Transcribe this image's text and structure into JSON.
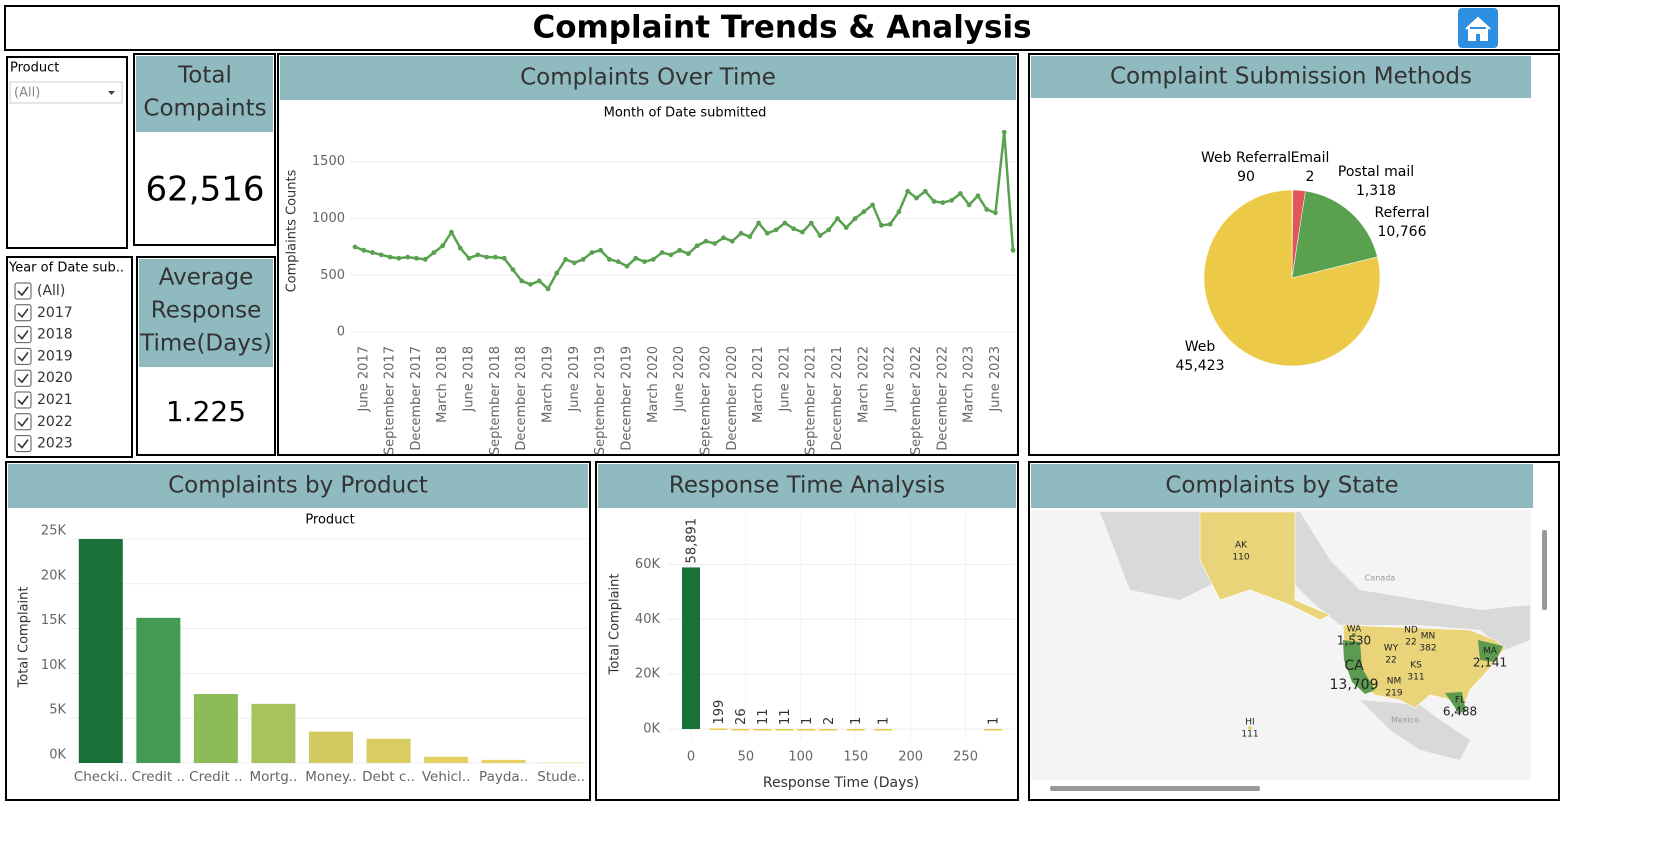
{
  "header": {
    "title": "Complaint Trends & Analysis"
  },
  "filters": {
    "product": {
      "label": "Product",
      "selected": "(All)"
    },
    "year": {
      "label": "Year of Date sub..",
      "options": [
        "(All)",
        "2017",
        "2018",
        "2019",
        "2020",
        "2021",
        "2022",
        "2023"
      ]
    }
  },
  "kpis": [
    {
      "title_lines": [
        "Total",
        "Compaints"
      ],
      "value": "62,516"
    },
    {
      "title_lines": [
        "Average",
        "Response",
        "Time(Days)"
      ],
      "value": "1.225"
    }
  ],
  "chart_data": [
    {
      "type": "line",
      "title": "Complaints Over Time",
      "x_label": "Month of Date submitted",
      "y_label": "Complaints Counts",
      "categories": [
        null,
        "June 2017",
        null,
        null,
        "September 2017",
        null,
        null,
        "December 2017",
        null,
        null,
        "March 2018",
        null,
        null,
        "June 2018",
        null,
        null,
        "September 2018",
        null,
        null,
        "December 2018",
        null,
        null,
        "March 2019",
        null,
        null,
        "June 2019",
        null,
        null,
        "September 2019",
        null,
        null,
        "December 2019",
        null,
        null,
        "March 2020",
        null,
        null,
        "June 2020",
        null,
        null,
        "September 2020",
        null,
        null,
        "December 2020",
        null,
        null,
        "March 2021",
        null,
        null,
        "June 2021",
        null,
        null,
        "September 2021",
        null,
        null,
        "December 2021",
        null,
        null,
        "March 2022",
        null,
        null,
        "June 2022",
        null,
        null,
        "September 2022",
        null,
        null,
        "December 2022",
        null,
        null,
        "March 2023",
        null,
        null,
        "June 2023",
        null,
        null
      ],
      "values": [
        750,
        720,
        700,
        680,
        660,
        650,
        660,
        650,
        640,
        700,
        760,
        880,
        740,
        650,
        680,
        660,
        660,
        650,
        550,
        450,
        420,
        450,
        380,
        520,
        640,
        610,
        640,
        700,
        720,
        640,
        620,
        580,
        650,
        620,
        640,
        700,
        680,
        720,
        690,
        760,
        800,
        780,
        830,
        800,
        870,
        840,
        960,
        870,
        900,
        960,
        910,
        880,
        960,
        850,
        900,
        1000,
        920,
        1000,
        1060,
        1120,
        940,
        950,
        1060,
        1240,
        1180,
        1240,
        1150,
        1140,
        1160,
        1220,
        1120,
        1200,
        1080,
        1050,
        1760,
        720
      ],
      "color": "#59a14f",
      "ylim": [
        -70,
        1850
      ],
      "yticks": [
        0,
        500,
        1000,
        1500
      ],
      "grid": true
    },
    {
      "type": "pie",
      "title": "Complaint Submission Methods",
      "categories": [
        "Web Referral",
        "Email",
        "Postal mail",
        "Referral",
        "Web"
      ],
      "values": [
        90,
        2,
        1318,
        10766,
        45423
      ],
      "value_labels": [
        "90",
        "2",
        "1,318",
        "10,766",
        "45,423"
      ],
      "colors": [
        "#f28e2b",
        "#76b7b2",
        "#e15759",
        "#59a14f",
        "#edc948"
      ]
    },
    {
      "type": "bar",
      "title": "Complaints by Product",
      "x_label": "Product",
      "y_label": "Total Complaint",
      "categories": [
        "Checki..",
        "Credit ..",
        "Credit ..",
        "Mortg..",
        "Money..",
        "Debt c..",
        "Vehicl..",
        "Payda..",
        "Stude.."
      ],
      "values": [
        25000,
        16200,
        7700,
        6600,
        3500,
        2700,
        700,
        350,
        50
      ],
      "colors": [
        "#1a7138",
        "#449a52",
        "#8cbb58",
        "#a7c35e",
        "#d3ca62",
        "#d9cc60",
        "#e3cf62",
        "#e6d162",
        "#e8d365"
      ],
      "ylim": [
        0,
        26000
      ],
      "yticks": [
        {
          "value": 0,
          "label": "0K"
        },
        {
          "value": 5000,
          "label": "5K"
        },
        {
          "value": 10000,
          "label": "10K"
        },
        {
          "value": 15000,
          "label": "15K"
        },
        {
          "value": 20000,
          "label": "20K"
        },
        {
          "value": 25000,
          "label": "25K"
        }
      ],
      "grid": true
    },
    {
      "type": "histbar",
      "title": "Response Time Analysis",
      "x_label": "Response Time (Days)",
      "y_label": "Total Complaint",
      "x": [
        0,
        25,
        45,
        65,
        85,
        105,
        125,
        150,
        175,
        275
      ],
      "values": [
        58891,
        199,
        26,
        11,
        11,
        1,
        2,
        1,
        1,
        1
      ],
      "value_labels": [
        "58,891",
        "199",
        "26",
        "11",
        "11",
        "1",
        "2",
        "1",
        "1",
        "1"
      ],
      "colors": [
        "#1a7138",
        "#e8c84a",
        "#e8c84a",
        "#e8c84a",
        "#e8c84a",
        "#e8c84a",
        "#e8c84a",
        "#e8c84a",
        "#e8c84a",
        "#e8c84a"
      ],
      "xlim": [
        -10,
        295
      ],
      "xticks": [
        0,
        50,
        100,
        150,
        200,
        250
      ],
      "ylim": [
        -4000,
        78000
      ],
      "yticks": [
        {
          "value": 0,
          "label": "0K"
        },
        {
          "value": 20000,
          "label": "20K"
        },
        {
          "value": 40000,
          "label": "40K"
        },
        {
          "value": 60000,
          "label": "60K"
        }
      ],
      "grid": true
    },
    {
      "type": "map",
      "title": "Complaints by State",
      "places": [
        "Canada",
        "Mexico"
      ],
      "states": [
        {
          "code": "AK",
          "value": 110,
          "label": "110"
        },
        {
          "code": "HI",
          "value": 111,
          "label": "111"
        },
        {
          "code": "WA",
          "value": 1530,
          "label": "1,530"
        },
        {
          "code": "ND",
          "value": 22,
          "label": "22"
        },
        {
          "code": "MN",
          "value": 382,
          "label": "382"
        },
        {
          "code": "WY",
          "value": 22,
          "label": "22"
        },
        {
          "code": "KS",
          "value": 311,
          "label": "311"
        },
        {
          "code": "NM",
          "value": 219,
          "label": "219"
        },
        {
          "code": "CA",
          "value": 13709,
          "label": "13,709"
        },
        {
          "code": "FL",
          "value": 6488,
          "label": "6,488"
        },
        {
          "code": "MA",
          "value": 2141,
          "label": "2,141"
        }
      ]
    }
  ]
}
